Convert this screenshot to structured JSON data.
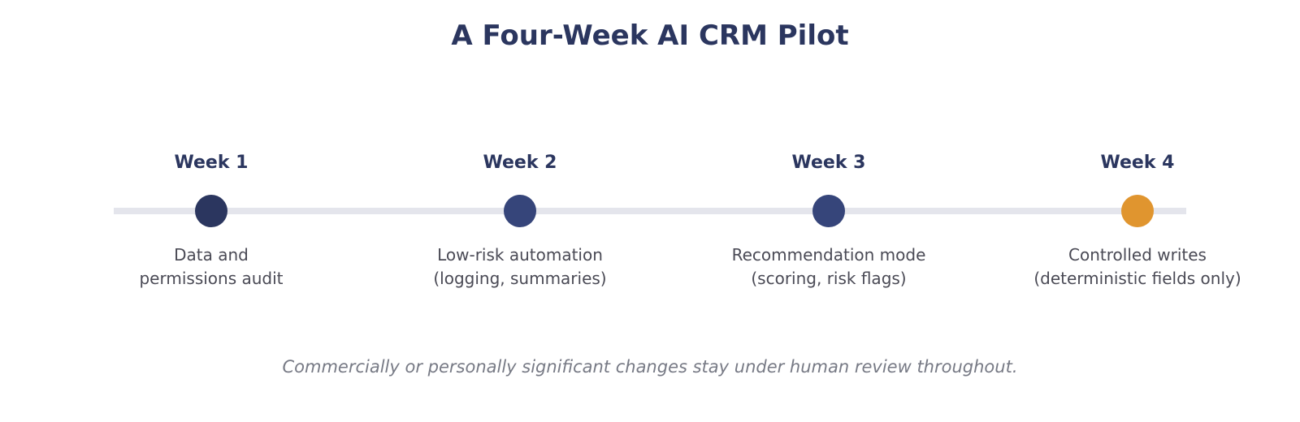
{
  "title": "A Four-Week AI CRM Pilot",
  "colors": {
    "title": "#2b365f",
    "track": "#e4e5ec",
    "milestone_default": "#36457a",
    "milestone_first": "#2b365f",
    "milestone_highlight": "#e0952f"
  },
  "milestones": [
    {
      "label": "Week 1",
      "desc_line1": "Data and",
      "desc_line2": "permissions audit",
      "color": "#2b365f"
    },
    {
      "label": "Week 2",
      "desc_line1": "Low-risk automation",
      "desc_line2": "(logging, summaries)",
      "color": "#36457a"
    },
    {
      "label": "Week 3",
      "desc_line1": "Recommendation mode",
      "desc_line2": "(scoring, risk flags)",
      "color": "#36457a"
    },
    {
      "label": "Week 4",
      "desc_line1": "Controlled writes",
      "desc_line2": "(deterministic fields only)",
      "color": "#e0952f"
    }
  ],
  "footnote": "Commercially or personally significant changes stay under human review throughout."
}
